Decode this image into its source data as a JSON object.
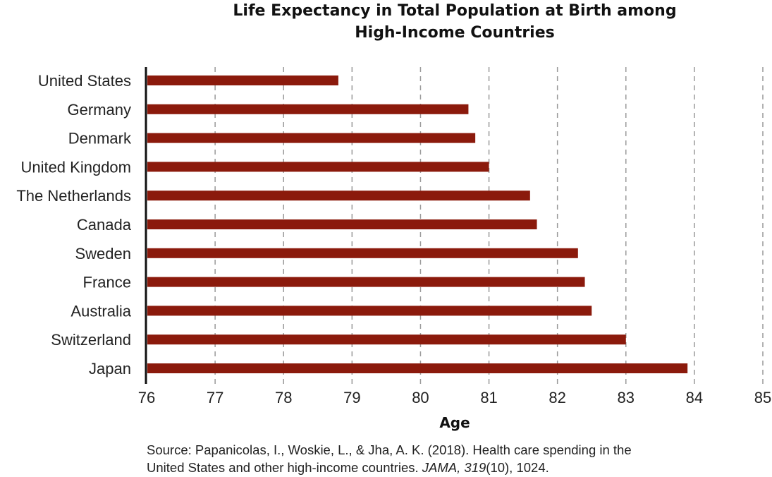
{
  "chart_data": {
    "type": "bar",
    "orientation": "horizontal",
    "title_lines": [
      "Life Expectancy in Total Population at Birth among",
      "High-Income Countries"
    ],
    "categories": [
      "United States",
      "Germany",
      "Denmark",
      "United Kingdom",
      "The Netherlands",
      "Canada",
      "Sweden",
      "France",
      "Australia",
      "Switzerland",
      "Japan"
    ],
    "values": [
      78.8,
      80.7,
      80.8,
      81.0,
      81.6,
      81.7,
      82.3,
      82.4,
      82.5,
      83.0,
      83.9
    ],
    "xlabel": "Age",
    "ylabel": "",
    "xlim": [
      76,
      85
    ],
    "xticks": [
      "76",
      "77",
      "78",
      "79",
      "80",
      "81",
      "82",
      "83",
      "84",
      "85"
    ],
    "grid": "vertical dashed",
    "bar_color": "#8b1a0c"
  },
  "source": {
    "line1": "Source: Papanicolas, I., Woskie, L., & Jha, A. K. (2018). Health care spending in the",
    "line2_prefix": "United States and other high-income countries. ",
    "journal": "JAMA, 319",
    "issue": "(10), 1024."
  }
}
